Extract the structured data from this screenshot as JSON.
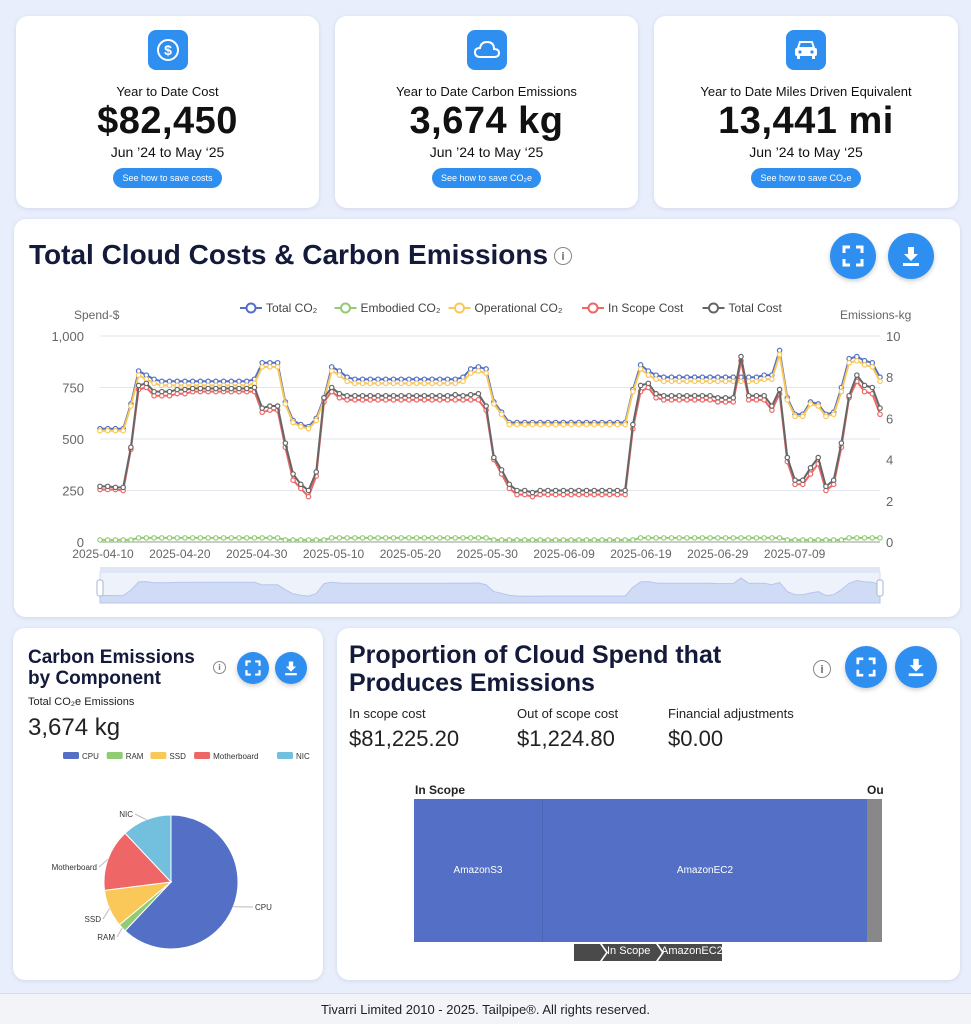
{
  "kpis": [
    {
      "label": "Year to Date Cost",
      "value": "$82,450",
      "range": "Jun ’24 to May ‘25",
      "button": "See how to save costs",
      "icon": "dollar-icon"
    },
    {
      "label": "Year to Date Carbon Emissions",
      "value": "3,674 kg",
      "range": "Jun ’24 to May ‘25",
      "button": "See how to save CO₂e",
      "icon": "cloud-icon"
    },
    {
      "label": "Year to Date Miles Driven Equivalent",
      "value": "13,441 mi",
      "range": "Jun ’24 to May ‘25",
      "button": "See how to save CO₂e",
      "icon": "car-icon"
    }
  ],
  "main_chart": {
    "title": "Total Cloud Costs & Carbon Emissions",
    "left_axis_label": "Spend-$",
    "right_axis_label": "Emissions-kg"
  },
  "chart_data": {
    "type": "line",
    "title": "Total Cloud Costs & Carbon Emissions",
    "ylabel": "Spend-$",
    "y2label": "Emissions-kg",
    "ylim": [
      0,
      1000
    ],
    "y2lim": [
      0,
      10
    ],
    "y_ticks": [
      "0",
      "250",
      "500",
      "750",
      "1,000"
    ],
    "y2_ticks": [
      "0",
      "2",
      "4",
      "6",
      "8",
      "10"
    ],
    "x_ticks": [
      "2025-04-10",
      "2025-04-20",
      "2025-04-30",
      "2025-05-10",
      "2025-05-20",
      "2025-05-30",
      "2025-06-09",
      "2025-06-19",
      "2025-06-29",
      "2025-07-09"
    ],
    "x_start": "2025-04-10",
    "legend": "top",
    "grid": true,
    "series": [
      {
        "name": "Total CO₂",
        "axis": "right",
        "color": "#5470c6",
        "values": [
          5.5,
          5.5,
          5.5,
          5.5,
          6.7,
          8.3,
          8.1,
          7.9,
          7.8,
          7.8,
          7.8,
          7.8,
          7.8,
          7.8,
          7.8,
          7.8,
          7.8,
          7.8,
          7.8,
          7.8,
          7.9,
          8.7,
          8.7,
          8.7,
          6.8,
          5.9,
          5.7,
          5.6,
          6.0,
          7.0,
          8.5,
          8.3,
          8.0,
          7.9,
          7.9,
          7.9,
          7.9,
          7.9,
          7.9,
          7.9,
          7.9,
          7.9,
          7.9,
          7.9,
          7.9,
          7.9,
          7.9,
          8.0,
          8.4,
          8.5,
          8.4,
          6.8,
          6.3,
          5.8,
          5.8,
          5.8,
          5.8,
          5.8,
          5.8,
          5.8,
          5.8,
          5.8,
          5.8,
          5.8,
          5.8,
          5.8,
          5.8,
          5.8,
          5.8,
          7.4,
          8.6,
          8.3,
          8.1,
          8.0,
          8.0,
          8.0,
          8.0,
          8.0,
          8.0,
          8.0,
          8.0,
          8.0,
          8.0,
          8.0,
          8.0,
          8.0,
          8.1,
          8.1,
          9.3,
          7.0,
          6.2,
          6.2,
          6.8,
          6.7,
          6.2,
          6.3,
          7.5,
          8.9,
          9.0,
          8.8,
          8.7,
          8.0
        ]
      },
      {
        "name": "Embodied CO₂",
        "axis": "right",
        "color": "#91cc75",
        "values": [
          0.1,
          0.1,
          0.1,
          0.1,
          0.1,
          0.2,
          0.2,
          0.2,
          0.2,
          0.2,
          0.2,
          0.2,
          0.2,
          0.2,
          0.2,
          0.2,
          0.2,
          0.2,
          0.2,
          0.2,
          0.2,
          0.2,
          0.2,
          0.2,
          0.1,
          0.1,
          0.1,
          0.1,
          0.1,
          0.1,
          0.2,
          0.2,
          0.2,
          0.2,
          0.2,
          0.2,
          0.2,
          0.2,
          0.2,
          0.2,
          0.2,
          0.2,
          0.2,
          0.2,
          0.2,
          0.2,
          0.2,
          0.2,
          0.2,
          0.2,
          0.2,
          0.1,
          0.1,
          0.1,
          0.1,
          0.1,
          0.1,
          0.1,
          0.1,
          0.1,
          0.1,
          0.1,
          0.1,
          0.1,
          0.1,
          0.1,
          0.1,
          0.1,
          0.1,
          0.1,
          0.2,
          0.2,
          0.2,
          0.2,
          0.2,
          0.2,
          0.2,
          0.2,
          0.2,
          0.2,
          0.2,
          0.2,
          0.2,
          0.2,
          0.2,
          0.2,
          0.2,
          0.2,
          0.2,
          0.1,
          0.1,
          0.1,
          0.1,
          0.1,
          0.1,
          0.1,
          0.1,
          0.2,
          0.2,
          0.2,
          0.2,
          0.2
        ]
      },
      {
        "name": "Operational CO₂",
        "axis": "right",
        "color": "#fac858",
        "values": [
          5.4,
          5.4,
          5.4,
          5.4,
          6.6,
          8.1,
          7.9,
          7.7,
          7.6,
          7.6,
          7.6,
          7.6,
          7.6,
          7.6,
          7.6,
          7.6,
          7.6,
          7.6,
          7.6,
          7.6,
          7.7,
          8.5,
          8.5,
          8.5,
          6.7,
          5.8,
          5.6,
          5.5,
          5.9,
          6.9,
          8.3,
          8.1,
          7.8,
          7.7,
          7.7,
          7.7,
          7.7,
          7.7,
          7.7,
          7.7,
          7.7,
          7.7,
          7.7,
          7.7,
          7.7,
          7.7,
          7.7,
          7.8,
          8.2,
          8.3,
          8.2,
          6.7,
          6.2,
          5.7,
          5.7,
          5.7,
          5.7,
          5.7,
          5.7,
          5.7,
          5.7,
          5.7,
          5.7,
          5.7,
          5.7,
          5.7,
          5.7,
          5.7,
          5.7,
          7.3,
          8.4,
          8.1,
          7.9,
          7.8,
          7.8,
          7.8,
          7.8,
          7.8,
          7.8,
          7.8,
          7.8,
          7.8,
          7.8,
          7.8,
          7.8,
          7.8,
          7.9,
          7.9,
          9.1,
          6.9,
          6.1,
          6.1,
          6.7,
          6.6,
          6.1,
          6.2,
          7.3,
          8.7,
          8.8,
          8.6,
          8.5,
          7.8
        ]
      },
      {
        "name": "In Scope Cost",
        "axis": "left",
        "color": "#ee6666",
        "values": [
          255,
          255,
          255,
          250,
          450,
          740,
          750,
          710,
          710,
          710,
          720,
          720,
          730,
          730,
          730,
          730,
          730,
          730,
          730,
          730,
          730,
          630,
          640,
          640,
          460,
          300,
          260,
          220,
          320,
          680,
          730,
          700,
          690,
          690,
          690,
          690,
          690,
          690,
          690,
          690,
          690,
          690,
          690,
          690,
          690,
          690,
          690,
          690,
          690,
          690,
          640,
          400,
          330,
          260,
          230,
          230,
          220,
          230,
          230,
          230,
          230,
          230,
          230,
          230,
          230,
          230,
          230,
          230,
          230,
          550,
          730,
          750,
          700,
          690,
          690,
          690,
          690,
          690,
          690,
          690,
          680,
          680,
          680,
          880,
          690,
          690,
          690,
          640,
          720,
          390,
          280,
          280,
          330,
          380,
          250,
          280,
          460,
          700,
          780,
          730,
          720,
          620
        ]
      },
      {
        "name": "Total Cost",
        "axis": "left",
        "color": "#666666",
        "values": [
          270,
          270,
          265,
          265,
          460,
          760,
          770,
          730,
          730,
          730,
          740,
          740,
          745,
          745,
          745,
          745,
          745,
          745,
          745,
          745,
          750,
          650,
          660,
          660,
          480,
          330,
          280,
          250,
          340,
          700,
          750,
          720,
          710,
          710,
          710,
          710,
          710,
          710,
          710,
          710,
          710,
          710,
          710,
          710,
          710,
          710,
          715,
          710,
          715,
          720,
          660,
          410,
          350,
          280,
          250,
          250,
          240,
          250,
          250,
          250,
          250,
          250,
          250,
          250,
          250,
          250,
          250,
          250,
          250,
          570,
          760,
          770,
          720,
          710,
          710,
          710,
          710,
          710,
          710,
          710,
          700,
          700,
          700,
          900,
          710,
          710,
          710,
          660,
          740,
          410,
          300,
          300,
          360,
          410,
          270,
          300,
          480,
          710,
          810,
          760,
          750,
          650
        ]
      }
    ]
  },
  "pie_card": {
    "title_line1": "Carbon Emissions",
    "title_line2": "by Component",
    "sublabel": "Total CO₂e Emissions",
    "value": "3,674 kg"
  },
  "pie_chart": {
    "type": "pie",
    "legend": [
      "CPU",
      "RAM",
      "SSD",
      "Motherboard",
      "NIC"
    ],
    "values": [
      62,
      2,
      9,
      15,
      12
    ],
    "colors": [
      "#5470c6",
      "#91cc75",
      "#fac858",
      "#ee6666",
      "#73c0de"
    ],
    "labels": [
      "CPU",
      "RAM",
      "SSD",
      "Motherboard",
      "NIC"
    ]
  },
  "spend_card": {
    "title_line1": "Proportion of Cloud Spend that",
    "title_line2": "Produces Emissions",
    "stats": [
      {
        "label": "In scope cost",
        "value": "$81,225.20"
      },
      {
        "label": "Out of scope cost",
        "value": "$1,224.80"
      },
      {
        "label": "Financial adjustments",
        "value": "$0.00"
      }
    ],
    "treemap": {
      "in_scope_label": "In Scope",
      "out_scope_label": "Ou",
      "blocks": [
        {
          "name": "AmazonS3"
        },
        {
          "name": "AmazonEC2"
        }
      ],
      "breadcrumb": [
        "In Scope",
        "AmazonEC2"
      ]
    }
  },
  "footer": {
    "text": "Tivarri Limited 2010 - 2025. Tailpipe®. All rights reserved."
  }
}
